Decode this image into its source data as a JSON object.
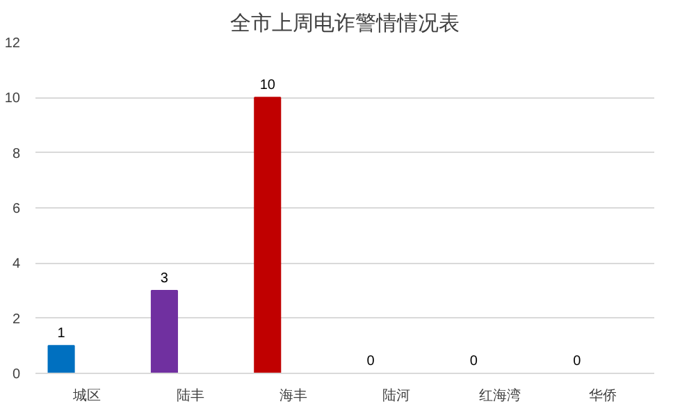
{
  "chart_data": {
    "type": "bar",
    "title": "全市上周电诈警情情况表",
    "categories": [
      "城区",
      "陆丰",
      "海丰",
      "陆河",
      "红海湾",
      "华侨"
    ],
    "values": [
      1,
      3,
      10,
      0,
      0,
      0
    ],
    "colors": [
      "#0070c0",
      "#7030a0",
      "#c00000",
      "#0070c0",
      "#0070c0",
      "#0070c0"
    ],
    "ylim": [
      0,
      12
    ],
    "yticks": [
      0,
      2,
      4,
      6,
      8,
      10,
      12
    ],
    "grid": "y",
    "data_labels": true
  }
}
